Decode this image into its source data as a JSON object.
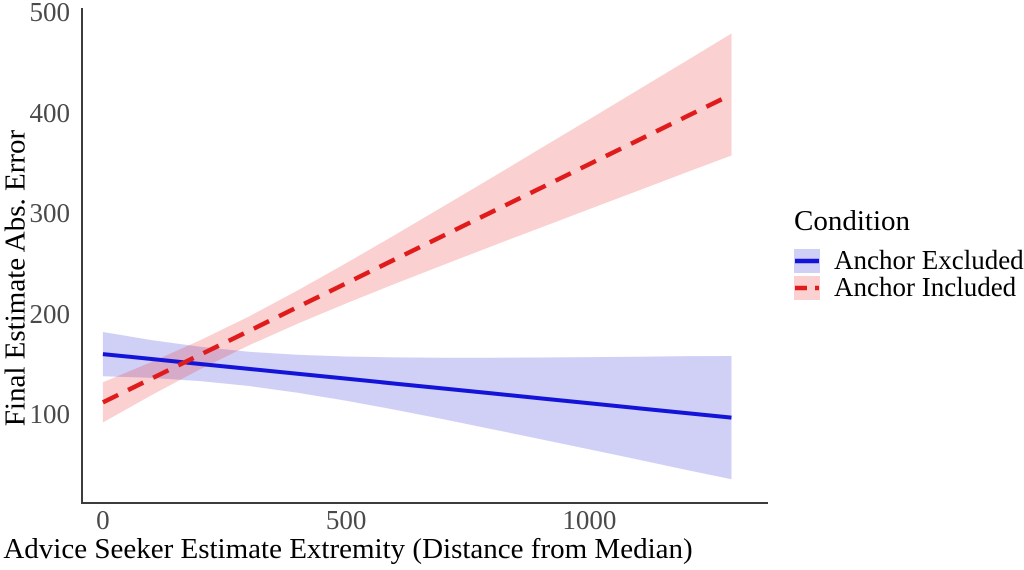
{
  "chart_data": {
    "type": "line",
    "title": "",
    "xlabel": "Advice Seeker Estimate Extremity (Distance from Median)",
    "ylabel": "Final Estimate Abs. Error",
    "x_ticks": [
      0,
      500,
      1000
    ],
    "y_ticks": [
      100,
      200,
      300,
      400,
      500
    ],
    "x_range": [
      -43,
      1365
    ],
    "y_range": [
      12,
      502
    ],
    "grid": false,
    "axis_color": "#3c3c3c",
    "tick_label_color": "#4a4a4a",
    "legend": {
      "title": "Condition",
      "position": "right",
      "entries": [
        {
          "label": "Anchor Excluded",
          "line_color": "#1414d8",
          "band_color": "rgba(60,60,220,0.24)",
          "dash": "solid"
        },
        {
          "label": "Anchor Included",
          "line_color": "#e01b1b",
          "band_color": "rgba(230,40,40,0.22)",
          "dash": "dashed"
        }
      ]
    },
    "x": [
      0,
      100,
      200,
      300,
      400,
      500,
      600,
      700,
      800,
      900,
      1000,
      1100,
      1200,
      1292
    ],
    "series": [
      {
        "name": "Anchor Excluded",
        "style": "solid",
        "line_color": "#1414d8",
        "band_color": "rgba(60,60,220,0.24)",
        "y": [
          160.0,
          155.1,
          150.2,
          145.3,
          140.4,
          135.6,
          130.7,
          125.8,
          120.9,
          116.0,
          111.1,
          106.2,
          101.4,
          96.9
        ],
        "upper": [
          182.0,
          173.9,
          167.2,
          162.3,
          159.3,
          157.6,
          156.7,
          156.4,
          156.4,
          156.6,
          157.0,
          157.4,
          158.0,
          158.1
        ],
        "lower": [
          138.0,
          136.3,
          133.2,
          128.3,
          121.6,
          113.6,
          104.7,
          95.2,
          85.4,
          75.4,
          65.3,
          55.1,
          44.8,
          35.7
        ]
      },
      {
        "name": "Anchor Included",
        "style": "dashed",
        "line_color": "#e01b1b",
        "band_color": "rgba(230,40,40,0.22)",
        "y": [
          112.0,
          135.7,
          159.4,
          183.0,
          206.7,
          230.4,
          254.1,
          277.8,
          301.4,
          325.1,
          348.8,
          372.5,
          396.2,
          418.0
        ],
        "upper": [
          132.0,
          152.2,
          173.8,
          197.4,
          223.2,
          250.4,
          278.4,
          306.9,
          335.5,
          364.5,
          393.5,
          422.6,
          451.7,
          478.6
        ],
        "lower": [
          92.0,
          119.2,
          145.0,
          168.6,
          190.2,
          210.4,
          229.8,
          248.7,
          267.3,
          285.7,
          304.1,
          322.4,
          340.7,
          357.4
        ]
      }
    ]
  }
}
